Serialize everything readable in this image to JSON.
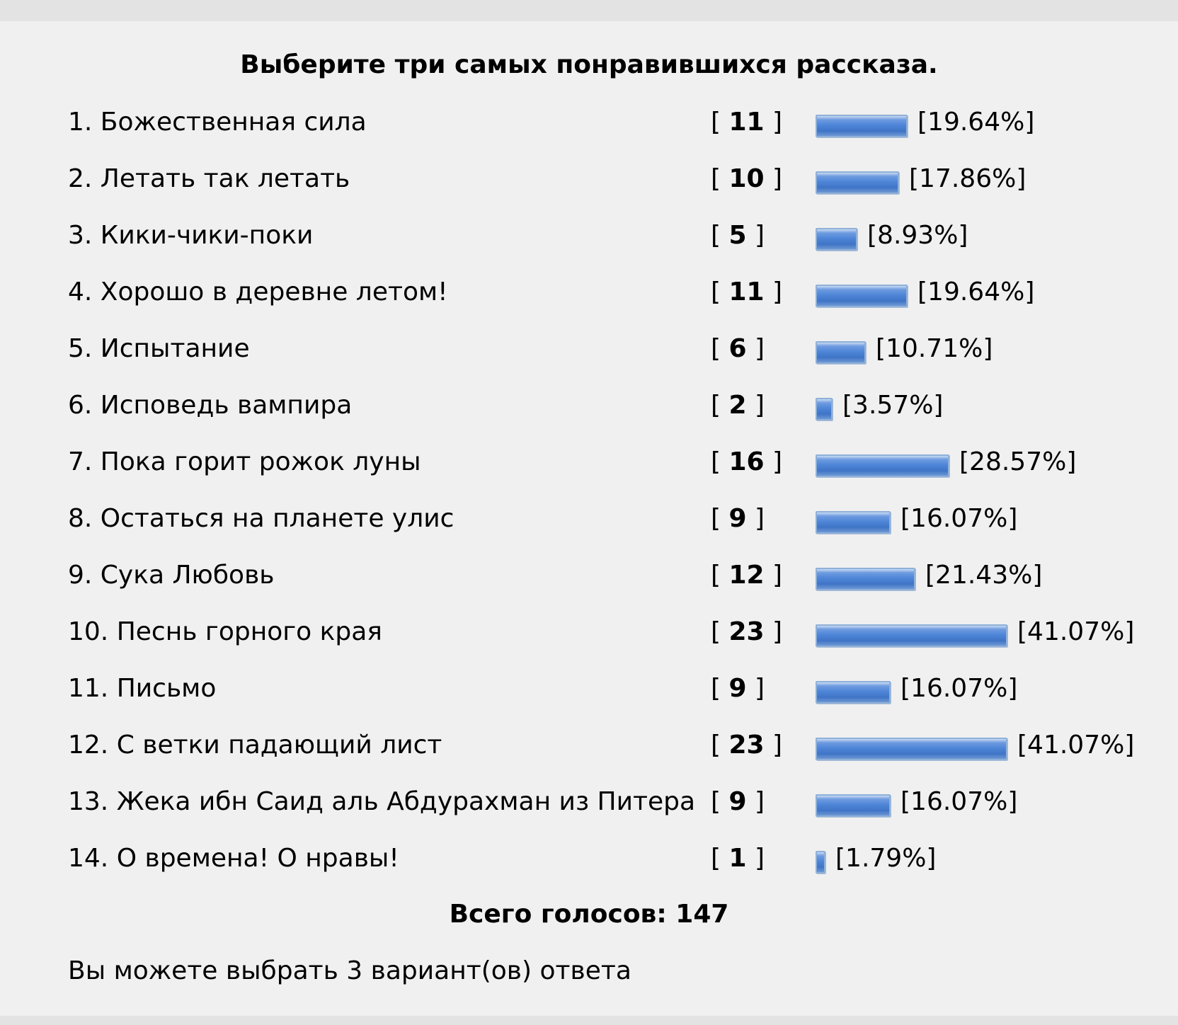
{
  "poll": {
    "title": "Выберите три самых понравившихся рассказа.",
    "options": [
      {
        "label": "1. Божественная сила",
        "votes": "11",
        "percent": "[19.64%]",
        "fraction": 0.1964
      },
      {
        "label": "2. Летать так летать",
        "votes": "10",
        "percent": "[17.86%]",
        "fraction": 0.1786
      },
      {
        "label": "3. Кики-чики-поки",
        "votes": "5",
        "percent": "[8.93%]",
        "fraction": 0.0893
      },
      {
        "label": "4. Хорошо в деревне летом!",
        "votes": "11",
        "percent": "[19.64%]",
        "fraction": 0.1964
      },
      {
        "label": "5. Испытание",
        "votes": "6",
        "percent": "[10.71%]",
        "fraction": 0.1071
      },
      {
        "label": "6. Исповедь вампира",
        "votes": "2",
        "percent": "[3.57%]",
        "fraction": 0.0357
      },
      {
        "label": "7. Пока горит рожок луны",
        "votes": "16",
        "percent": "[28.57%]",
        "fraction": 0.2857
      },
      {
        "label": "8. Остаться на планете улис",
        "votes": "9",
        "percent": "[16.07%]",
        "fraction": 0.1607
      },
      {
        "label": "9. Сука Любовь",
        "votes": "12",
        "percent": "[21.43%]",
        "fraction": 0.2143
      },
      {
        "label": "10. Песнь горного края",
        "votes": "23",
        "percent": "[41.07%]",
        "fraction": 0.4107
      },
      {
        "label": "11. Письмо",
        "votes": "9",
        "percent": "[16.07%]",
        "fraction": 0.1607
      },
      {
        "label": "12. С ветки падающий лист",
        "votes": "23",
        "percent": "[41.07%]",
        "fraction": 0.4107
      },
      {
        "label": "13. Жека ибн Саид аль Абдурахман из Питера",
        "votes": "9",
        "percent": "[16.07%]",
        "fraction": 0.1607
      },
      {
        "label": "14. О времена! О нравы!",
        "votes": "1",
        "percent": "[1.79%]",
        "fraction": 0.0179
      }
    ],
    "total_label": "Всего голосов: 147",
    "hint": "Вы можете выбрать 3 вариант(ов) ответа",
    "bar_color": "#4f86d8"
  }
}
